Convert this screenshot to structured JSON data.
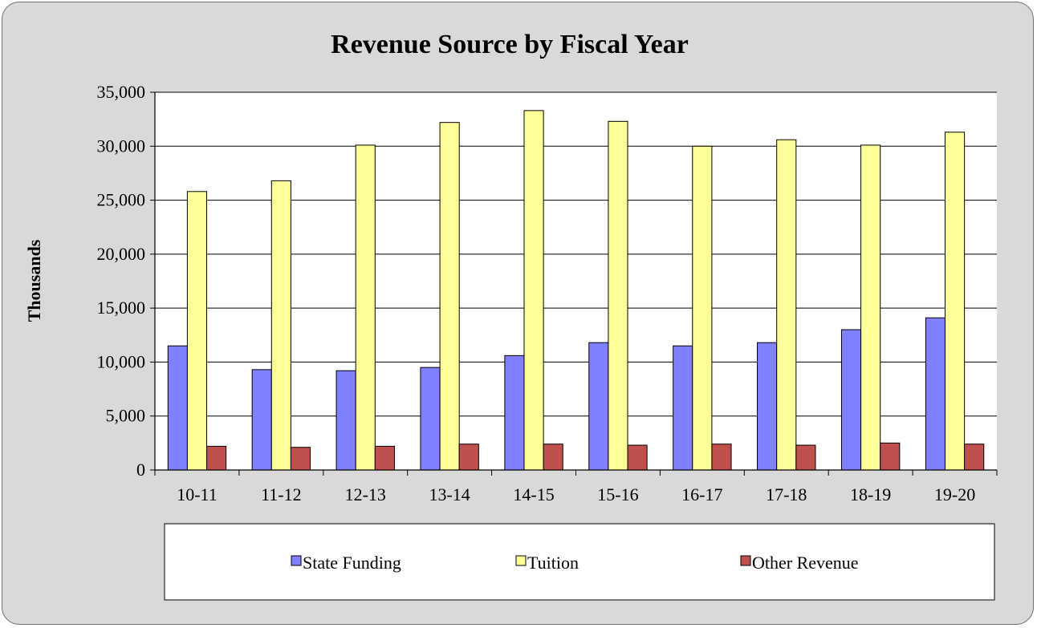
{
  "chart_data": {
    "type": "bar",
    "title": "Revenue Source by Fiscal Year",
    "xlabel": "",
    "ylabel": "Thousands",
    "ylim": [
      0,
      35000
    ],
    "yticks": [
      0,
      5000,
      10000,
      15000,
      20000,
      25000,
      30000,
      35000
    ],
    "ytick_labels": [
      "0",
      "5,000",
      "10,000",
      "15,000",
      "20,000",
      "25,000",
      "30,000",
      "35,000"
    ],
    "grid": true,
    "legend_position": "bottom",
    "categories": [
      "10-11",
      "11-12",
      "12-13",
      "13-14",
      "14-15",
      "15-16",
      "16-17",
      "17-18",
      "18-19",
      "19-20"
    ],
    "series": [
      {
        "name": "State Funding",
        "color": "#8080ff",
        "values": [
          11500,
          9300,
          9200,
          9500,
          10600,
          11800,
          11500,
          11800,
          13000,
          14100
        ]
      },
      {
        "name": "Tuition",
        "color": "#ffff99",
        "values": [
          25800,
          26800,
          30100,
          32200,
          33300,
          32300,
          30000,
          30600,
          30100,
          31300
        ]
      },
      {
        "name": "Other Revenue",
        "color": "#c0504d",
        "values": [
          2200,
          2100,
          2200,
          2400,
          2400,
          2300,
          2400,
          2300,
          2500,
          2400
        ]
      }
    ]
  }
}
